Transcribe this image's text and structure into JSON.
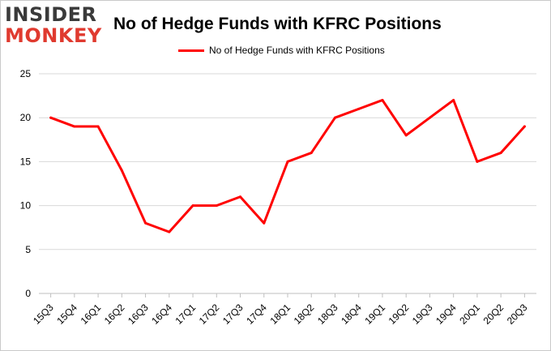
{
  "brand": {
    "logo_line1": "INSIDER",
    "logo_line2": "MONKEY"
  },
  "chart_data": {
    "type": "line",
    "title": "No of Hedge Funds with KFRC Positions",
    "xlabel": "",
    "ylabel": "",
    "categories": [
      "15Q3",
      "15Q4",
      "16Q1",
      "16Q2",
      "16Q3",
      "16Q4",
      "17Q1",
      "17Q2",
      "17Q3",
      "17Q4",
      "18Q1",
      "18Q2",
      "18Q3",
      "18Q4",
      "19Q1",
      "19Q2",
      "19Q3",
      "19Q4",
      "20Q1",
      "20Q2",
      "20Q3"
    ],
    "series": [
      {
        "name": "No of Hedge Funds with KFRC Positions",
        "color": "#ff0000",
        "values": [
          20,
          19,
          19,
          14,
          8,
          7,
          10,
          10,
          11,
          8,
          15,
          16,
          20,
          21,
          22,
          18,
          20,
          22,
          15,
          16,
          19
        ]
      }
    ],
    "ylim": [
      0,
      25
    ],
    "yticks": [
      0,
      5,
      10,
      15,
      20,
      25
    ],
    "grid": true,
    "legend_position": "top-center"
  },
  "colors": {
    "line": "#ff0000",
    "grid": "#d9d9d9",
    "axis": "#bfbfbf"
  }
}
